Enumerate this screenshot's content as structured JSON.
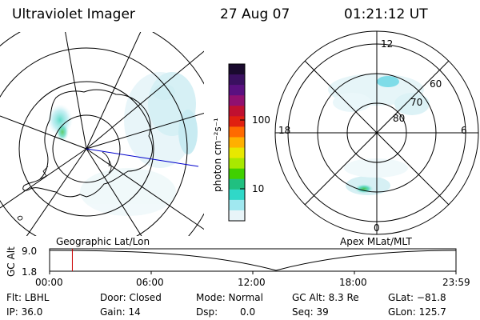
{
  "header": {
    "instrument": "Ultraviolet Imager",
    "date": "27 Aug 07",
    "time": "01:21:12 UT"
  },
  "colorbar": {
    "label": "photon cm⁻²s⁻¹",
    "ticks": [
      "100",
      "10"
    ],
    "colors": [
      "#1a0a2e",
      "#3a1060",
      "#5a1080",
      "#901070",
      "#c01030",
      "#e02010",
      "#ff6a00",
      "#ffb000",
      "#e8e800",
      "#a8e800",
      "#40d000",
      "#20c080",
      "#30d8c8",
      "#a0e8f0",
      "#e8f4f8"
    ]
  },
  "left_map": {
    "caption": "Geographic Lat/Lon",
    "line_color": "#0000cc",
    "aurora_color": "#8fd8e8"
  },
  "right_map": {
    "caption": "Apex MLat/MLT",
    "labels": {
      "top": "12",
      "bottom": "0",
      "left": "18",
      "right": "6",
      "lat60": "60",
      "lat70": "70",
      "lat80": "80"
    }
  },
  "timeline": {
    "axis_label": "GC Alt",
    "y_top": "9.0",
    "y_bottom": "1.8",
    "x_ticks": [
      "00:00",
      "06:00",
      "12:00",
      "18:00",
      "23:59"
    ],
    "marker_color": "#cc0000",
    "current_fraction": 0.056
  },
  "info": {
    "row1": {
      "filter": "Flt: LBHL",
      "door": "Door: Closed",
      "mode": "Mode: Normal",
      "gc_alt": "GC Alt: 8.3 Re",
      "glat": "GLat: −81.8"
    },
    "row2": {
      "ip": "IP: 36.0",
      "gain": "Gain: 14",
      "dsp_label": "Dsp:",
      "dsp_value": "0.0",
      "seq": "Seq: 39",
      "glon": "GLon: 125.7"
    }
  }
}
